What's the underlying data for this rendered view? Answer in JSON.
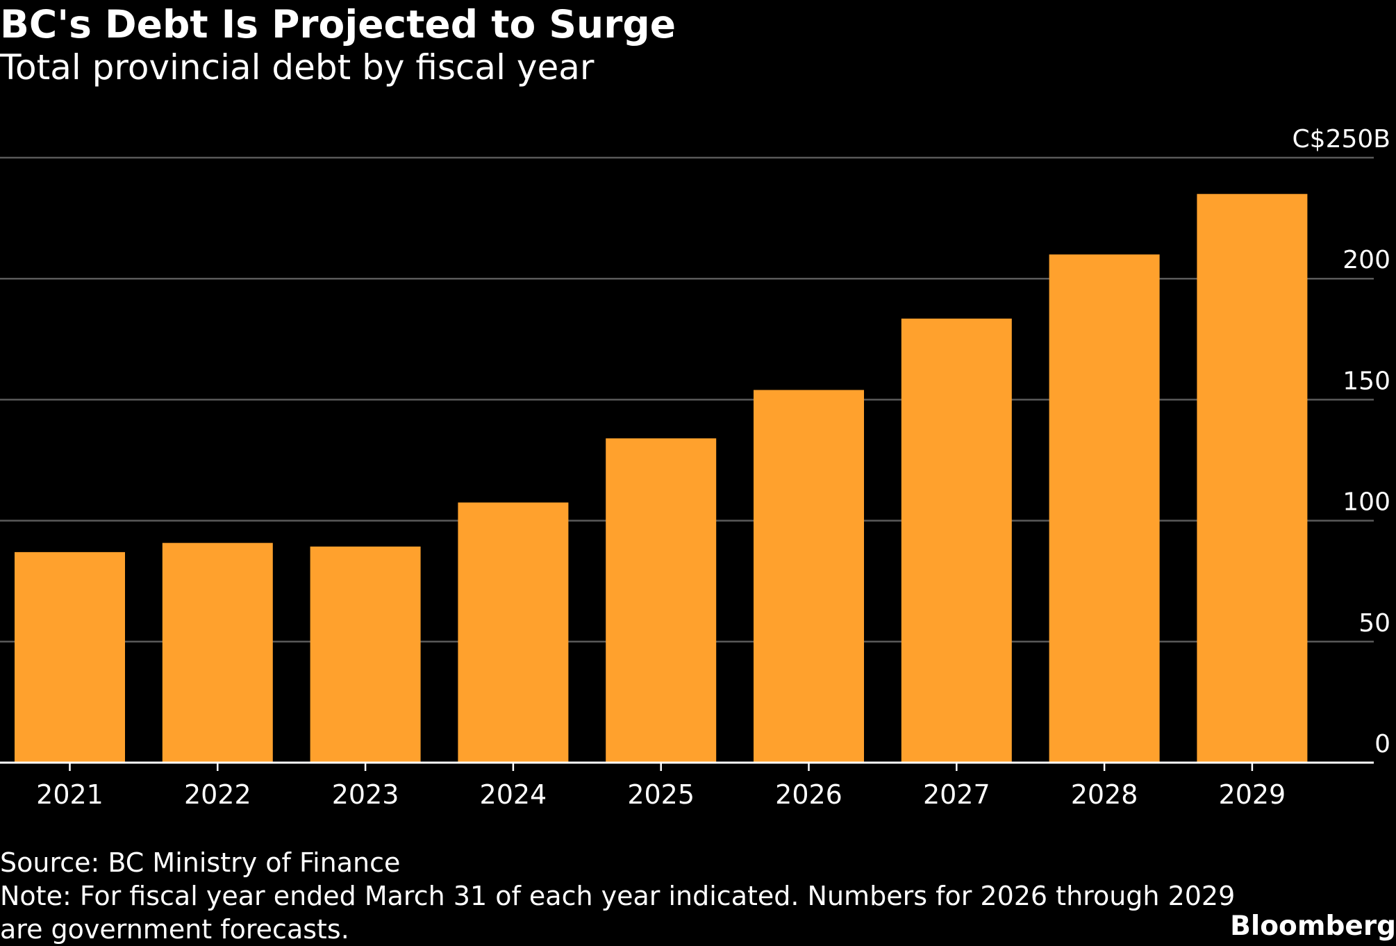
{
  "chart_data": {
    "type": "bar",
    "title": "BC's Debt Is Projected to Surge",
    "subtitle": "Total provincial debt by fiscal year",
    "categories": [
      "2021",
      "2022",
      "2023",
      "2024",
      "2025",
      "2026",
      "2027",
      "2028",
      "2029"
    ],
    "values": [
      87,
      90.8,
      89.3,
      107.5,
      134,
      154,
      183.5,
      210,
      235
    ],
    "unit": "C$ billions",
    "ylim": [
      0,
      250
    ],
    "y_ticks": [
      0,
      50,
      100,
      150,
      200,
      250
    ],
    "y_tick_labels": [
      "0",
      "50",
      "100",
      "150",
      "200",
      "C$250B"
    ],
    "y_axis_side": "right",
    "xlabel": "",
    "ylabel": "",
    "grid": true,
    "colors": {
      "bar": "#ffa12d",
      "background": "#000000",
      "grid": "#5a5a5a",
      "axis": "#ffffff",
      "text": "#ffffff"
    }
  },
  "footer": {
    "source": "Source: BC Ministry of Finance",
    "note_line_1": "Note: For fiscal year ended March 31 of each year indicated. Numbers for 2026 through 2029",
    "note_line_2": "are government forecasts.",
    "brand": "Bloomberg"
  }
}
